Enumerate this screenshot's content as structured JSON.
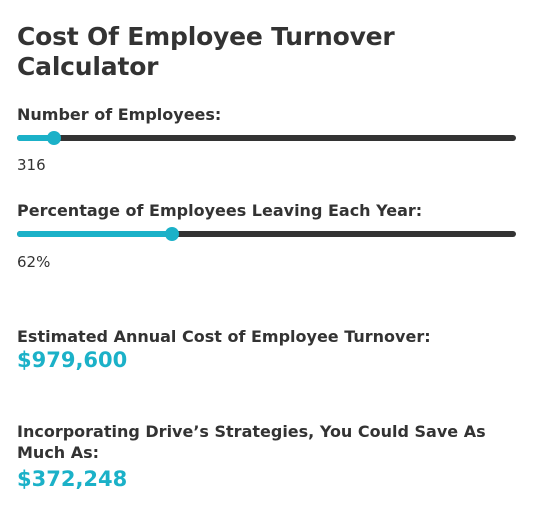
{
  "calculator": {
    "title": "Cost Of Employee Turnover Calculator",
    "accent_color": "#1bb1c8",
    "track_color": "#333333",
    "employees": {
      "label": "Number of Employees:",
      "value_text": "316",
      "fill_fraction": 0.075
    },
    "leaving": {
      "label": "Percentage of Employees Leaving Each Year:",
      "value_text": "62%",
      "fill_fraction": 0.31
    },
    "annual_cost": {
      "label": "Estimated Annual Cost of Employee Turnover:",
      "value": "$979,600"
    },
    "savings": {
      "label": "Incorporating Drive’s Strategies, You Could Save As Much As:",
      "value": "$372,248"
    }
  }
}
